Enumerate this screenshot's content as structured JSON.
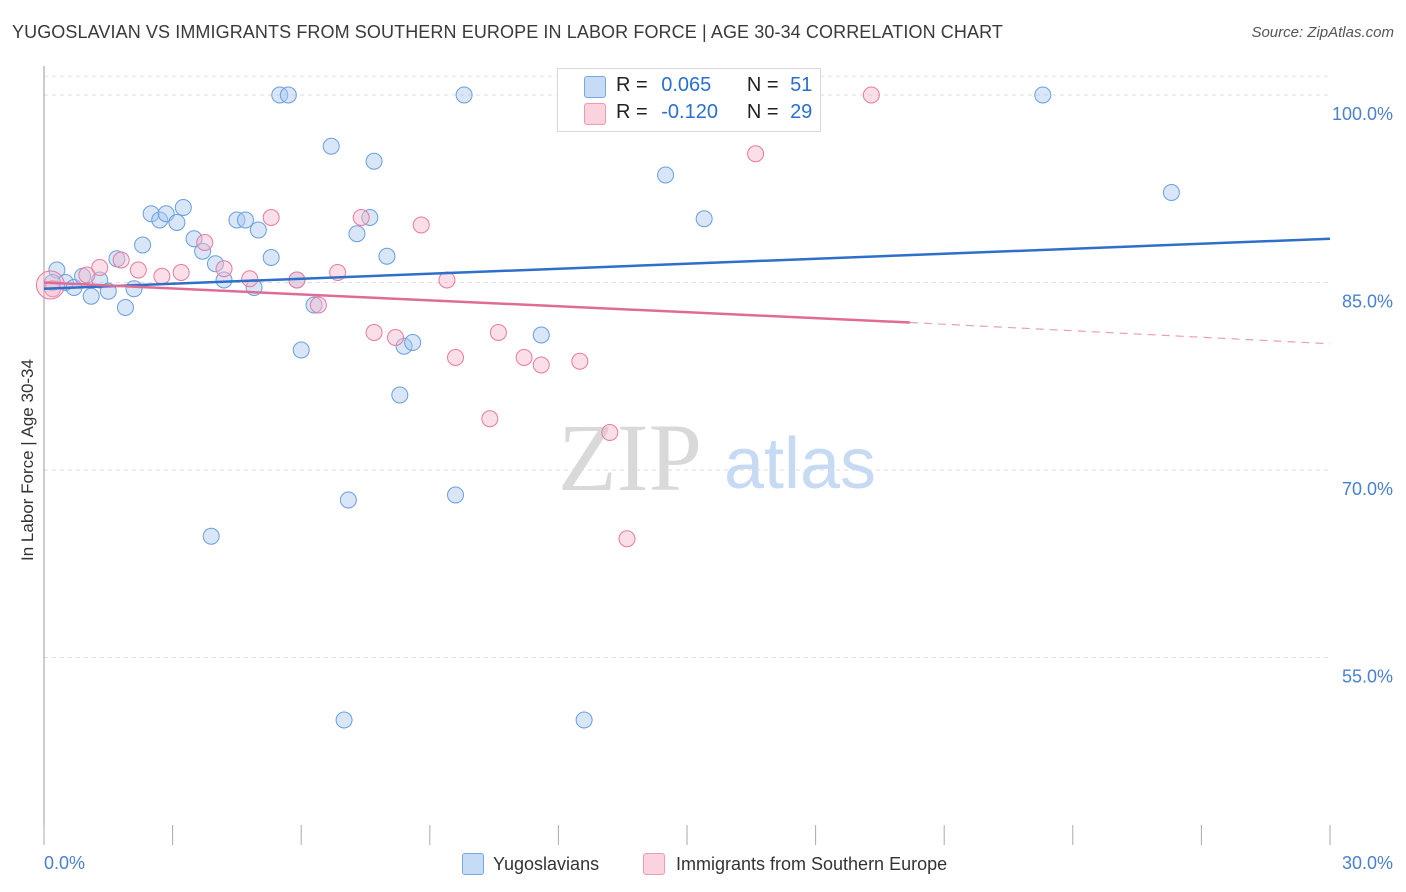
{
  "title": "YUGOSLAVIAN VS IMMIGRANTS FROM SOUTHERN EUROPE IN LABOR FORCE | AGE 30-34 CORRELATION CHART",
  "source": "Source: ZipAtlas.com",
  "watermark": {
    "zip": "ZIP",
    "atlas": "atlas"
  },
  "legend_stats": {
    "r_label": "R =",
    "n_label": "N =",
    "rows": [
      {
        "r": "0.065",
        "n": "51",
        "color": "#a9c8f0"
      },
      {
        "r": "-0.120",
        "n": "29",
        "color": "#f5b9cc"
      }
    ]
  },
  "bottom_legend": {
    "items": [
      {
        "label": "Yugoslavians",
        "color": "#a9c8f0"
      },
      {
        "label": "Immigrants from Southern Europe",
        "color": "#f5b9cc"
      }
    ]
  },
  "chart_data": {
    "type": "scatter",
    "title": "YUGOSLAVIAN VS IMMIGRANTS FROM SOUTHERN EUROPE IN LABOR FORCE | AGE 30-34 CORRELATION CHART",
    "xlabel": "",
    "ylabel": "In Labor Force | Age 30-34",
    "xlim": [
      0,
      30
    ],
    "ylim": [
      40,
      102
    ],
    "x_tick_labels": [
      "0.0%",
      "30.0%"
    ],
    "y_ticks": [
      55,
      70,
      85,
      100
    ],
    "y_tick_labels": [
      "55.0%",
      "70.0%",
      "85.0%",
      "100.0%"
    ],
    "grid": true,
    "series": [
      {
        "name": "Yugoslavians",
        "color": "#6a9fe0",
        "fill": "#a9c8f0",
        "trend": {
          "x": [
            0,
            30
          ],
          "y": [
            84.5,
            88.5
          ],
          "dashed_from": null
        },
        "points": [
          [
            0.3,
            86.0
          ],
          [
            0.5,
            85.0
          ],
          [
            0.7,
            84.6
          ],
          [
            0.9,
            85.5
          ],
          [
            1.1,
            83.9
          ],
          [
            1.3,
            85.2
          ],
          [
            1.5,
            84.3
          ],
          [
            1.7,
            86.9
          ],
          [
            1.9,
            83.0
          ],
          [
            2.1,
            84.5
          ],
          [
            2.3,
            88.0
          ],
          [
            2.5,
            90.5
          ],
          [
            2.7,
            90.0
          ],
          [
            2.85,
            90.5
          ],
          [
            3.1,
            89.8
          ],
          [
            3.25,
            91.0
          ],
          [
            3.5,
            88.5
          ],
          [
            3.7,
            87.5
          ],
          [
            4.0,
            86.5
          ],
          [
            4.2,
            85.2
          ],
          [
            4.5,
            90.0
          ],
          [
            4.7,
            90.0
          ],
          [
            4.9,
            84.6
          ],
          [
            5.0,
            89.2
          ],
          [
            5.3,
            87.0
          ],
          [
            5.5,
            100.0
          ],
          [
            5.7,
            100.0
          ],
          [
            5.9,
            85.2
          ],
          [
            6.0,
            79.6
          ],
          [
            6.3,
            83.2
          ],
          [
            6.7,
            95.9
          ],
          [
            7.0,
            50.0
          ],
          [
            7.1,
            67.6
          ],
          [
            7.3,
            88.9
          ],
          [
            7.6,
            90.2
          ],
          [
            7.7,
            94.7
          ],
          [
            8.0,
            87.1
          ],
          [
            8.3,
            76.0
          ],
          [
            8.4,
            79.9
          ],
          [
            8.6,
            80.2
          ],
          [
            9.6,
            68.0
          ],
          [
            9.8,
            100.0
          ],
          [
            11.6,
            80.8
          ],
          [
            12.4,
            100.0
          ],
          [
            12.6,
            50.0
          ],
          [
            14.5,
            93.6
          ],
          [
            15.4,
            90.1
          ],
          [
            23.3,
            100.0
          ],
          [
            26.3,
            92.2
          ],
          [
            3.9,
            64.7
          ],
          [
            0.2,
            85.0
          ]
        ]
      },
      {
        "name": "Immigrants from Southern Europe",
        "color": "#e87aa0",
        "fill": "#f5b9cc",
        "trend": {
          "x": [
            0,
            20.2
          ],
          "y": [
            85.0,
            81.8
          ],
          "dashed_to": 30,
          "dashed_y": 80.1
        },
        "points": [
          [
            0.2,
            84.5
          ],
          [
            1.3,
            86.2
          ],
          [
            1.8,
            86.8
          ],
          [
            2.2,
            86.0
          ],
          [
            2.75,
            85.5
          ],
          [
            3.2,
            85.8
          ],
          [
            3.75,
            88.2
          ],
          [
            4.2,
            86.1
          ],
          [
            4.8,
            85.3
          ],
          [
            5.3,
            90.2
          ],
          [
            5.9,
            85.2
          ],
          [
            6.4,
            83.2
          ],
          [
            6.85,
            85.8
          ],
          [
            7.4,
            90.2
          ],
          [
            7.7,
            81.0
          ],
          [
            8.2,
            80.6
          ],
          [
            8.8,
            89.6
          ],
          [
            9.4,
            85.2
          ],
          [
            9.6,
            79.0
          ],
          [
            10.4,
            74.1
          ],
          [
            10.6,
            81.0
          ],
          [
            11.2,
            79.0
          ],
          [
            11.6,
            78.4
          ],
          [
            12.5,
            78.7
          ],
          [
            13.2,
            73.0
          ],
          [
            13.6,
            64.5
          ],
          [
            16.6,
            95.3
          ],
          [
            19.3,
            100.0
          ],
          [
            1.0,
            85.6
          ]
        ]
      }
    ]
  }
}
